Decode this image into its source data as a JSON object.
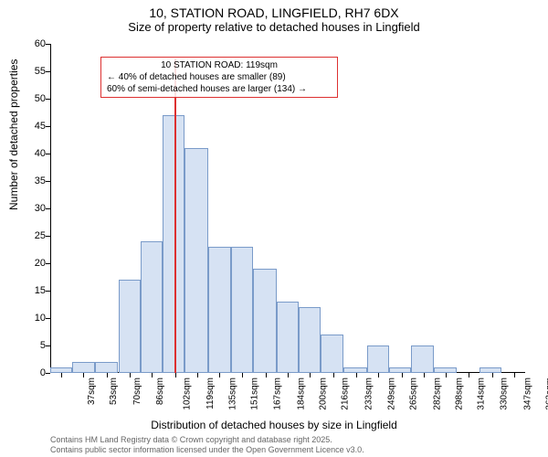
{
  "title": {
    "line1": "10, STATION ROAD, LINGFIELD, RH7 6DX",
    "line2": "Size of property relative to detached houses in Lingfield"
  },
  "chart": {
    "type": "histogram",
    "y_label": "Number of detached properties",
    "x_label": "Distribution of detached houses by size in Lingfield",
    "ylim": [
      0,
      60
    ],
    "ytick_step": 5,
    "background_color": "#ffffff",
    "bar_fill": "#d6e2f3",
    "bar_border": "#7a9bc9",
    "axis_color": "#000000",
    "marker_color": "#dd3030",
    "marker_value_sqm": 119,
    "x_tick_start": 37,
    "x_tick_step": 16.3,
    "x_tick_suffix": "sqm",
    "x_tick_count": 21,
    "x_data_min": 29,
    "x_data_max": 371,
    "bars": [
      {
        "start": 29,
        "end": 45,
        "value": 1
      },
      {
        "start": 45,
        "end": 61,
        "value": 2
      },
      {
        "start": 61,
        "end": 78,
        "value": 2
      },
      {
        "start": 78,
        "end": 94,
        "value": 17
      },
      {
        "start": 94,
        "end": 110,
        "value": 24
      },
      {
        "start": 110,
        "end": 126,
        "value": 47
      },
      {
        "start": 126,
        "end": 143,
        "value": 41
      },
      {
        "start": 143,
        "end": 159,
        "value": 23
      },
      {
        "start": 159,
        "end": 175,
        "value": 23
      },
      {
        "start": 175,
        "end": 192,
        "value": 19
      },
      {
        "start": 192,
        "end": 208,
        "value": 13
      },
      {
        "start": 208,
        "end": 224,
        "value": 12
      },
      {
        "start": 224,
        "end": 240,
        "value": 7
      },
      {
        "start": 240,
        "end": 257,
        "value": 1
      },
      {
        "start": 257,
        "end": 273,
        "value": 5
      },
      {
        "start": 273,
        "end": 289,
        "value": 1
      },
      {
        "start": 289,
        "end": 305,
        "value": 5
      },
      {
        "start": 305,
        "end": 322,
        "value": 1
      },
      {
        "start": 322,
        "end": 338,
        "value": 0
      },
      {
        "start": 338,
        "end": 354,
        "value": 1
      },
      {
        "start": 354,
        "end": 371,
        "value": 0
      }
    ],
    "callout": {
      "headline": "10 STATION ROAD: 119sqm",
      "line_left": "← 40% of detached houses are smaller (89)",
      "line_right": "60% of semi-detached houses are larger (134) →"
    }
  },
  "footer": {
    "line1": "Contains HM Land Registry data © Crown copyright and database right 2025.",
    "line2": "Contains public sector information licensed under the Open Government Licence v3.0."
  }
}
